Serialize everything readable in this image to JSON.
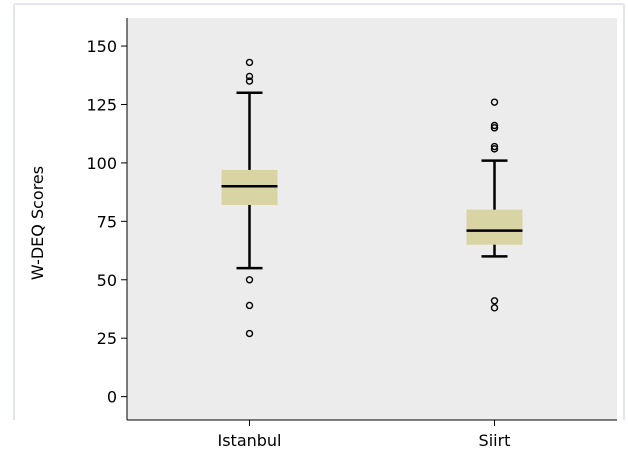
{
  "chart_data": {
    "type": "box",
    "title": "",
    "xlabel": "",
    "ylabel": "W-DEQ Scores",
    "ylim": [
      -10,
      162
    ],
    "yticks": [
      0,
      25,
      50,
      75,
      100,
      125,
      150
    ],
    "grid": false,
    "categories": [
      "Istanbul",
      "Siirt"
    ],
    "boxes": [
      {
        "label": "Istanbul",
        "whisker_low": 55,
        "q1": 82,
        "median": 90,
        "q3": 97,
        "whisker_high": 130,
        "outliers": [
          135,
          137,
          143,
          50,
          39,
          27
        ]
      },
      {
        "label": "Siirt",
        "whisker_low": 60,
        "q1": 65,
        "median": 71,
        "q3": 80,
        "whisker_high": 101,
        "outliers": [
          106,
          107,
          115,
          116,
          126,
          41,
          38
        ]
      }
    ],
    "colors": {
      "box_fill": "#d9d4a3",
      "plot_background": "#ececec",
      "axis": "#000000",
      "frame": "#e3e4ef"
    }
  }
}
